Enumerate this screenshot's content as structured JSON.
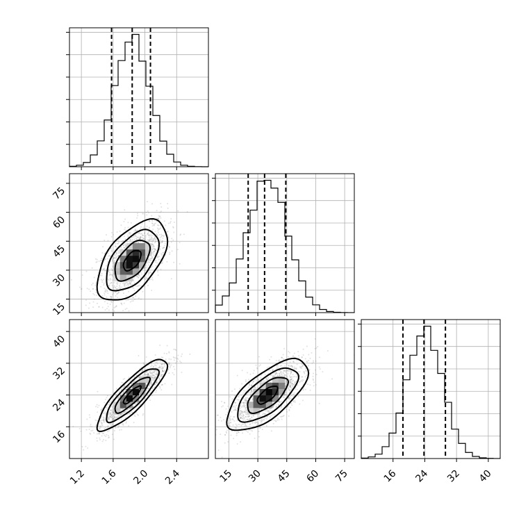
{
  "chart_data": {
    "type": "corner",
    "parameters": [
      {
        "index": 0,
        "mean": 1.84,
        "std": 0.22,
        "range": [
          1.05,
          2.8
        ],
        "ticks": [
          1.2,
          1.6,
          2.0,
          2.4
        ],
        "tick_labels": [
          "1.2",
          "1.6",
          "2.0",
          "2.4"
        ],
        "quantiles": [
          1.58,
          1.84,
          2.07
        ]
      },
      {
        "index": 1,
        "mean": 35,
        "std": 10.5,
        "range": [
          8,
          80
        ],
        "ticks": [
          15,
          30,
          45,
          60,
          75
        ],
        "tick_labels": [
          "15",
          "30",
          "45",
          "60",
          "75"
        ],
        "quantiles": [
          25,
          33.5,
          44.5
        ]
      },
      {
        "index": 2,
        "mean": 24,
        "std": 4.5,
        "range": [
          8,
          43
        ],
        "ticks": [
          16,
          24,
          32,
          40
        ],
        "tick_labels": [
          "16",
          "24",
          "32",
          "40"
        ],
        "quantiles": [
          18.5,
          23.8,
          29.2
        ]
      }
    ],
    "correlations": [
      {
        "pair": [
          0,
          1
        ],
        "rho": 0.55
      },
      {
        "pair": [
          0,
          2
        ],
        "rho": 0.85
      },
      {
        "pair": [
          1,
          2
        ],
        "rho": 0.68
      }
    ],
    "grid": true,
    "histogram_style": "step",
    "contour_levels_sigma": [
      0.5,
      1.0,
      1.5,
      2.0
    ],
    "quantile_line_style": "dashed"
  }
}
